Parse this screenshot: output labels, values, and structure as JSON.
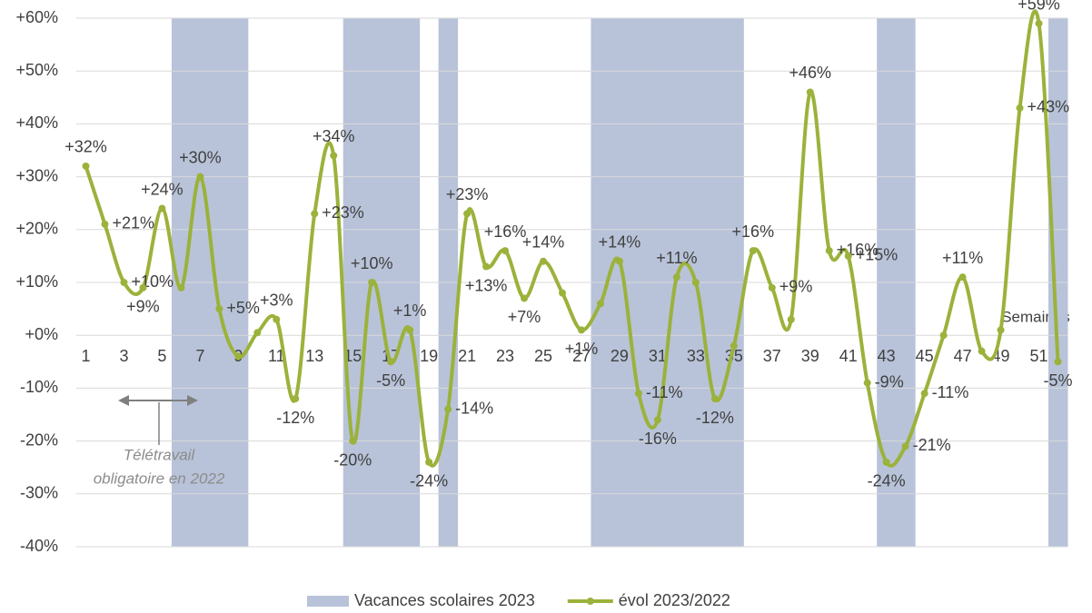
{
  "chart_data": {
    "type": "line",
    "x_label": "Semaines",
    "x": [
      1,
      2,
      3,
      4,
      5,
      6,
      7,
      8,
      9,
      10,
      11,
      12,
      13,
      14,
      15,
      16,
      17,
      18,
      19,
      20,
      21,
      22,
      23,
      24,
      25,
      26,
      27,
      28,
      29,
      30,
      31,
      32,
      33,
      34,
      35,
      36,
      37,
      38,
      39,
      40,
      41,
      42,
      43,
      44,
      45,
      46,
      47,
      48,
      49,
      50,
      51,
      52
    ],
    "xlim": [
      0.5,
      52.5
    ],
    "xticks": [
      1,
      3,
      5,
      7,
      9,
      11,
      13,
      15,
      17,
      19,
      21,
      23,
      25,
      27,
      29,
      31,
      33,
      35,
      37,
      39,
      41,
      43,
      45,
      47,
      49,
      51
    ],
    "ylim": [
      -40,
      60
    ],
    "yticks": [
      {
        "value": -40,
        "label": "-40%"
      },
      {
        "value": -30,
        "label": "-30%"
      },
      {
        "value": -20,
        "label": "-20%"
      },
      {
        "value": -10,
        "label": "-10%"
      },
      {
        "value": 0,
        "label": "+0%"
      },
      {
        "value": 10,
        "label": "+10%"
      },
      {
        "value": 20,
        "label": "+20%"
      },
      {
        "value": 30,
        "label": "+30%"
      },
      {
        "value": 40,
        "label": "+40%"
      },
      {
        "value": 50,
        "label": "+50%"
      },
      {
        "value": 60,
        "label": "+60%"
      }
    ],
    "y2lim": [
      0,
      1
    ],
    "grid": true,
    "legend": "bottom",
    "series": [
      {
        "name": "Vacances scolaires 2023",
        "type": "bar",
        "axis": "y2",
        "color": "#b8c3d9",
        "values": [
          null,
          null,
          null,
          null,
          null,
          1,
          1,
          1,
          1,
          null,
          null,
          null,
          null,
          null,
          1,
          1,
          1,
          1,
          null,
          1,
          null,
          null,
          null,
          null,
          null,
          null,
          null,
          1,
          1,
          1,
          1,
          1,
          1,
          1,
          1,
          null,
          null,
          null,
          null,
          null,
          null,
          null,
          1,
          1,
          null,
          null,
          null,
          null,
          null,
          null,
          null,
          1
        ]
      },
      {
        "name": "évol 2023/2022",
        "type": "line",
        "color": "#9bb23b",
        "values": [
          32,
          21,
          10,
          9,
          24,
          9,
          30,
          5,
          -4,
          0.5,
          3,
          -12,
          23,
          34,
          -20,
          10,
          -5,
          1,
          -24,
          -14,
          23,
          13,
          16,
          7,
          14,
          8,
          1,
          6,
          14,
          -11,
          -16,
          11,
          10,
          -12,
          -2,
          16,
          9,
          3,
          46,
          16,
          15,
          -9,
          -24,
          -21,
          -11,
          0,
          11,
          -3,
          1,
          43,
          59,
          -5
        ],
        "value_labels": [
          "+32%",
          "+21%",
          "+10%",
          "+9%",
          "+24%",
          null,
          "+30%",
          "+5%",
          null,
          null,
          "+3%",
          "-12%",
          "+23%",
          "+34%",
          "-20%",
          "+10%",
          "-5%",
          "+1%",
          "-24%",
          "-14%",
          "+23%",
          "+13%",
          "+16%",
          "+7%",
          "+14%",
          null,
          "+1%",
          null,
          "+14%",
          "-11%",
          "-16%",
          "+11%",
          null,
          "-12%",
          null,
          "+16%",
          "+9%",
          null,
          "+46%",
          "+16%",
          "+15%",
          "-9%",
          "-24%",
          "-21%",
          "-11%",
          null,
          "+11%",
          null,
          null,
          "+43%",
          "+59%",
          "-5%"
        ]
      }
    ],
    "annotation": [
      "Télétravail",
      "obligatoire en 2022"
    ]
  }
}
